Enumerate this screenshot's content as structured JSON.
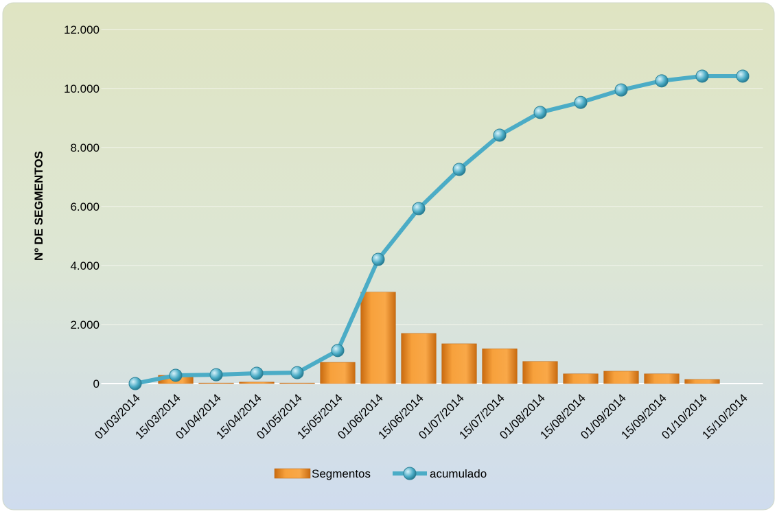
{
  "chart_data": {
    "type": "bar_line",
    "y_axis_label": "Nº DE SEGMENTOS",
    "categories": [
      "01/03/2014",
      "15/03/2014",
      "01/04/2014",
      "15/04/2014",
      "01/05/2014",
      "15/05/2014",
      "01/06/2014",
      "15/06/2014",
      "01/07/2014",
      "15/07/2014",
      "01/08/2014",
      "15/08/2014",
      "01/09/2014",
      "15/09/2014",
      "01/10/2014",
      "15/10/2014"
    ],
    "series": [
      {
        "name": "Segmentos",
        "type": "bar",
        "color": "#f39a2e",
        "values": [
          0,
          280,
          20,
          50,
          20,
          720,
          3100,
          1700,
          1350,
          1180,
          750,
          330,
          420,
          330,
          140,
          0
        ]
      },
      {
        "name": "acumulado",
        "type": "line",
        "color": "#4bacc6",
        "values": [
          0,
          280,
          300,
          350,
          370,
          1120,
          4210,
          5930,
          7260,
          8420,
          9190,
          9530,
          9950,
          10260,
          10420,
          10420
        ]
      }
    ],
    "ylim": [
      0,
      12000
    ],
    "yticks": [
      0,
      {
        "value": 2000,
        "label": "2.000"
      },
      {
        "value": 4000,
        "label": "4.000"
      },
      {
        "value": 6000,
        "label": "6.000"
      },
      {
        "value": 8000,
        "label": "8.000"
      },
      {
        "value": 10000,
        "label": "10.000"
      },
      {
        "value": 12000,
        "label": "12.000"
      }
    ],
    "grid": true,
    "legend": "bottom"
  }
}
